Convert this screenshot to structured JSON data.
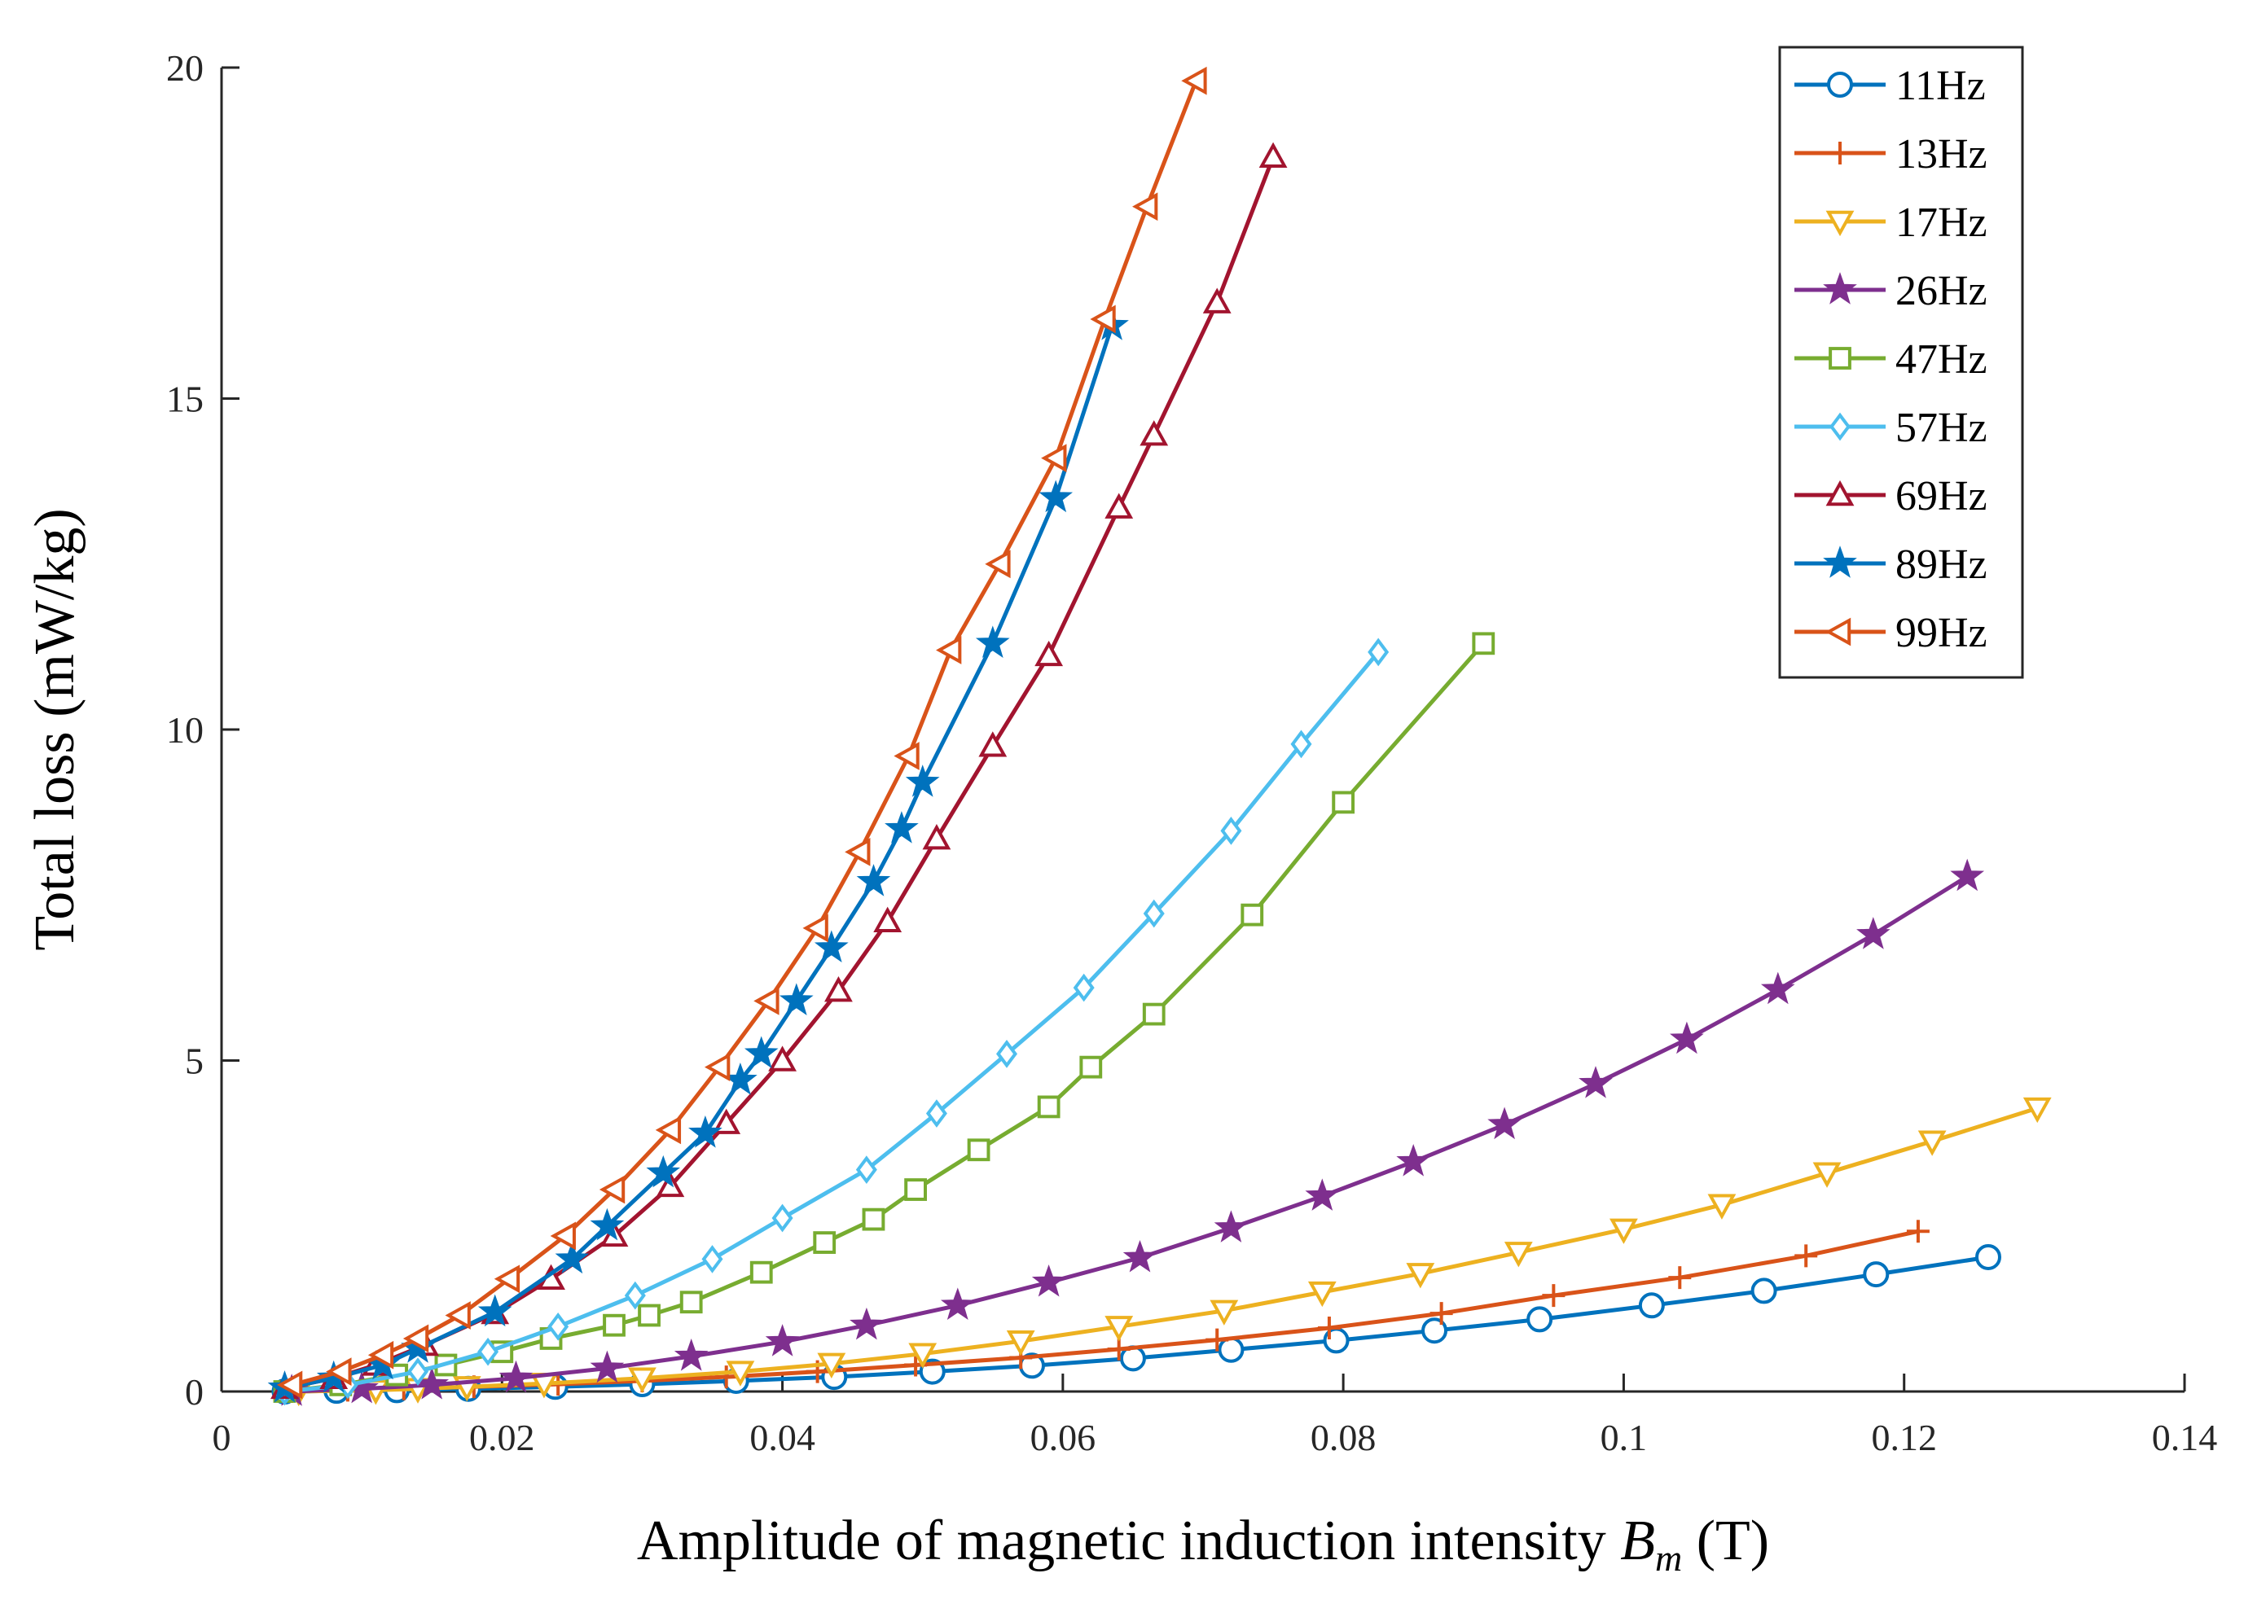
{
  "chart_data": {
    "type": "line",
    "title": "",
    "xlabel_prefix": "Amplitude of magnetic induction intensity ",
    "xlabel_symbol": "B",
    "xlabel_subscript": "m",
    "xlabel_suffix": " (T)",
    "ylabel": "Total loss (mW/kg)",
    "xlim": [
      0,
      0.14
    ],
    "ylim": [
      0,
      20
    ],
    "xticks": [
      0,
      0.02,
      0.04,
      0.06,
      0.08,
      0.1,
      0.12,
      0.14
    ],
    "xtick_labels": [
      "0",
      "0.02",
      "0.04",
      "0.06",
      "0.08",
      "0.1",
      "0.12",
      "0.14"
    ],
    "yticks": [
      0,
      5,
      10,
      15,
      20
    ],
    "ytick_labels": [
      "0",
      "5",
      "10",
      "15",
      "20"
    ],
    "grid": false,
    "legend_position": "top-right",
    "series": [
      {
        "name": "11Hz",
        "color": "#0072BD",
        "marker": "circle",
        "x": [
          0.0045,
          0.0082,
          0.0125,
          0.0176,
          0.0238,
          0.03,
          0.0367,
          0.0437,
          0.0507,
          0.0578,
          0.065,
          0.072,
          0.0795,
          0.0865,
          0.094,
          0.102,
          0.11,
          0.118,
          0.126
        ],
        "y": [
          0.0,
          0.01,
          0.02,
          0.04,
          0.07,
          0.11,
          0.16,
          0.22,
          0.3,
          0.39,
          0.5,
          0.63,
          0.77,
          0.92,
          1.09,
          1.3,
          1.52,
          1.77,
          2.03
        ]
      },
      {
        "name": "13Hz",
        "color": "#D95319",
        "marker": "plus",
        "x": [
          0.005,
          0.009,
          0.013,
          0.018,
          0.024,
          0.03,
          0.036,
          0.0425,
          0.0495,
          0.057,
          0.064,
          0.071,
          0.079,
          0.087,
          0.095,
          0.104,
          0.113,
          0.121
        ],
        "y": [
          0.0,
          0.02,
          0.04,
          0.07,
          0.11,
          0.16,
          0.22,
          0.3,
          0.4,
          0.51,
          0.64,
          0.78,
          0.96,
          1.18,
          1.45,
          1.72,
          2.05,
          2.42
        ]
      },
      {
        "name": "17Hz",
        "color": "#EDB120",
        "marker": "triangle-down",
        "x": [
          0.0055,
          0.011,
          0.014,
          0.0175,
          0.023,
          0.03,
          0.037,
          0.0435,
          0.05,
          0.057,
          0.064,
          0.0715,
          0.0785,
          0.0855,
          0.0925,
          0.1,
          0.107,
          0.1145,
          0.122,
          0.1295
        ],
        "y": [
          0.0,
          0.02,
          0.04,
          0.07,
          0.12,
          0.2,
          0.3,
          0.42,
          0.57,
          0.76,
          0.98,
          1.22,
          1.5,
          1.78,
          2.1,
          2.45,
          2.82,
          3.3,
          3.78,
          4.28
        ]
      },
      {
        "name": "26Hz",
        "color": "#7E2F8E",
        "marker": "star",
        "x": [
          0.005,
          0.01,
          0.015,
          0.021,
          0.0275,
          0.0335,
          0.04,
          0.046,
          0.0525,
          0.059,
          0.0655,
          0.072,
          0.0785,
          0.085,
          0.0915,
          0.098,
          0.1045,
          0.111,
          0.1178,
          0.1245
        ],
        "y": [
          0.0,
          0.04,
          0.1,
          0.2,
          0.35,
          0.53,
          0.75,
          1.0,
          1.3,
          1.65,
          2.02,
          2.47,
          2.95,
          3.47,
          4.03,
          4.65,
          5.32,
          6.07,
          6.9,
          7.78
        ]
      },
      {
        "name": "47Hz",
        "color": "#77AC30",
        "marker": "square",
        "x": [
          0.0045,
          0.0085,
          0.0125,
          0.016,
          0.02,
          0.0235,
          0.028,
          0.0305,
          0.0335,
          0.0385,
          0.043,
          0.0465,
          0.0495,
          0.054,
          0.059,
          0.062,
          0.0665,
          0.0735,
          0.08,
          0.09
        ],
        "y": [
          0.0,
          0.1,
          0.25,
          0.4,
          0.6,
          0.8,
          1.0,
          1.15,
          1.35,
          1.8,
          2.25,
          2.6,
          3.05,
          3.65,
          4.3,
          4.9,
          5.7,
          7.2,
          8.9,
          11.3
        ]
      },
      {
        "name": "57Hz",
        "color": "#4DBEEE",
        "marker": "diamond",
        "x": [
          0.0045,
          0.009,
          0.014,
          0.019,
          0.024,
          0.0295,
          0.035,
          0.04,
          0.046,
          0.051,
          0.056,
          0.0615,
          0.0665,
          0.072,
          0.077,
          0.0825
        ],
        "y": [
          0.0,
          0.1,
          0.3,
          0.6,
          0.98,
          1.45,
          2.0,
          2.62,
          3.35,
          4.2,
          5.1,
          6.1,
          7.22,
          8.47,
          9.78,
          11.17
        ]
      },
      {
        "name": "69Hz",
        "color": "#A2142F",
        "marker": "triangle-up",
        "x": [
          0.0045,
          0.008,
          0.011,
          0.0145,
          0.0195,
          0.0235,
          0.028,
          0.032,
          0.036,
          0.04,
          0.044,
          0.0475,
          0.051,
          0.055,
          0.059,
          0.064,
          0.0665,
          0.071,
          0.075
        ],
        "y": [
          0.05,
          0.2,
          0.4,
          0.7,
          1.18,
          1.7,
          2.35,
          3.1,
          4.05,
          5.0,
          6.05,
          7.1,
          8.35,
          9.75,
          11.12,
          13.35,
          14.45,
          16.45,
          18.65
        ]
      },
      {
        "name": "89Hz",
        "color": "#0072BD",
        "marker": "star",
        "x": [
          0.0045,
          0.008,
          0.0115,
          0.014,
          0.0195,
          0.025,
          0.0275,
          0.0315,
          0.0345,
          0.037,
          0.0385,
          0.041,
          0.0435,
          0.0465,
          0.0485,
          0.05,
          0.055,
          0.0595,
          0.0635
        ],
        "y": [
          0.05,
          0.2,
          0.4,
          0.65,
          1.2,
          2.0,
          2.5,
          3.3,
          3.9,
          4.7,
          5.1,
          5.9,
          6.7,
          7.7,
          8.5,
          9.2,
          11.3,
          13.5,
          16.1
        ]
      },
      {
        "name": "99Hz",
        "color": "#D95319",
        "marker": "triangle-left",
        "x": [
          0.005,
          0.0085,
          0.0115,
          0.014,
          0.017,
          0.0205,
          0.0245,
          0.028,
          0.032,
          0.0355,
          0.039,
          0.0425,
          0.0455,
          0.049,
          0.052,
          0.0555,
          0.0595,
          0.063,
          0.066,
          0.0695
        ],
        "y": [
          0.1,
          0.3,
          0.55,
          0.8,
          1.15,
          1.7,
          2.35,
          3.05,
          3.95,
          4.9,
          5.9,
          7.0,
          8.15,
          9.6,
          11.2,
          12.5,
          14.1,
          16.2,
          17.9,
          19.8
        ]
      }
    ]
  }
}
